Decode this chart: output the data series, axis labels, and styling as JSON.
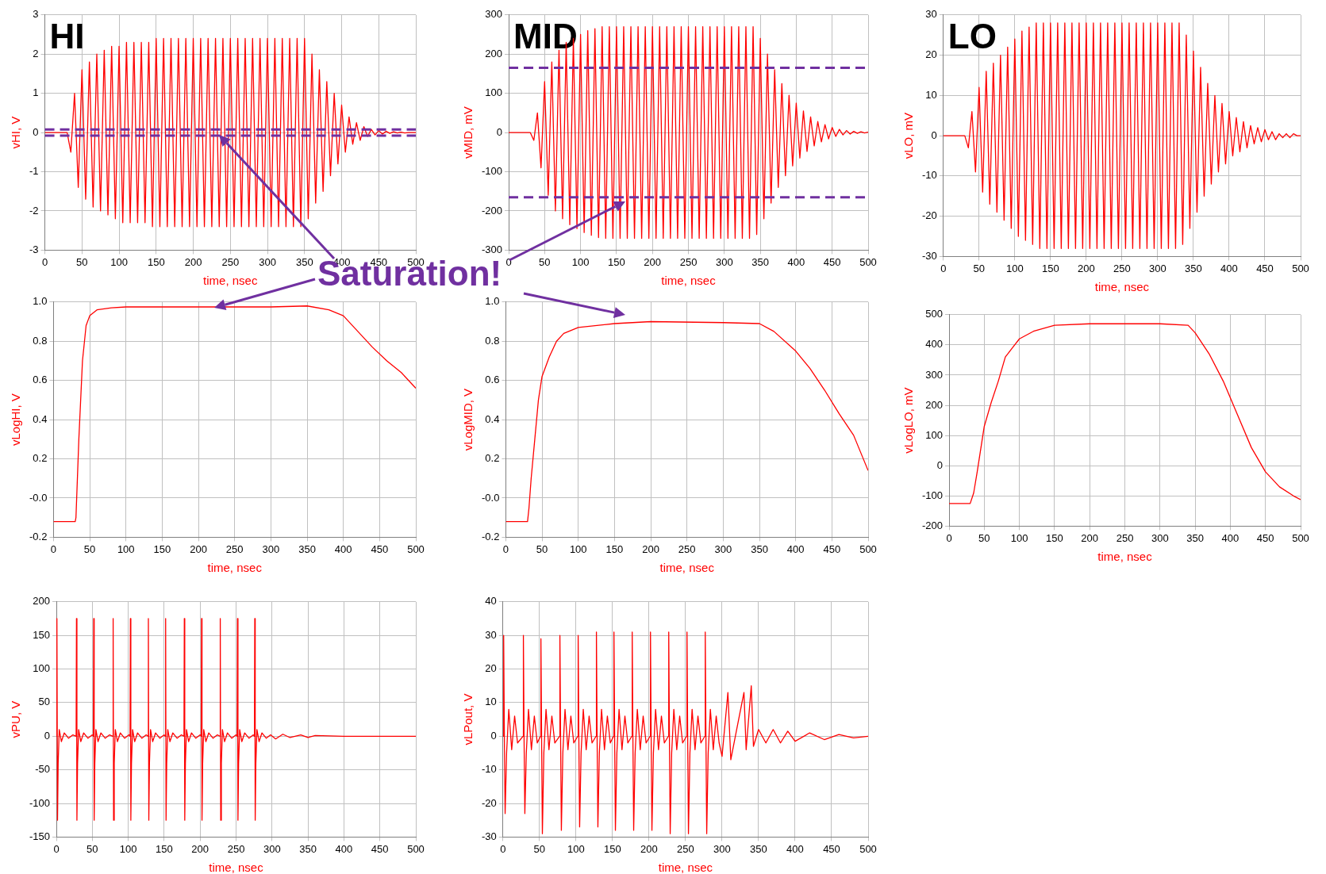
{
  "chart_data": [
    {
      "type": "line",
      "title": "HI",
      "xlabel": "time, nsec",
      "ylabel": "vHI, V",
      "xlim": [
        0,
        500
      ],
      "xticks": [
        0,
        50,
        100,
        150,
        200,
        250,
        300,
        350,
        400,
        450,
        500
      ],
      "ylim": [
        -3,
        3
      ],
      "yticks": [
        -3,
        -2,
        -1,
        0,
        1,
        2,
        3
      ],
      "grid": true,
      "legend": false,
      "marker": "none",
      "annotations": [
        "Saturation!"
      ],
      "ref_lines": [
        {
          "axis": "y",
          "value": 0.08,
          "color": "#7030a0",
          "line_style": "dashed"
        },
        {
          "axis": "y",
          "value": -0.08,
          "color": "#7030a0",
          "line_style": "dashed"
        }
      ],
      "x": [
        0,
        5,
        10,
        15,
        20,
        25,
        30,
        35,
        40,
        45,
        50,
        55,
        60,
        65,
        70,
        75,
        80,
        85,
        90,
        95,
        100,
        105,
        110,
        115,
        120,
        125,
        130,
        135,
        140,
        145,
        150,
        155,
        160,
        165,
        170,
        175,
        180,
        185,
        190,
        195,
        200,
        205,
        210,
        215,
        220,
        225,
        230,
        235,
        240,
        245,
        250,
        255,
        260,
        265,
        270,
        275,
        280,
        285,
        290,
        295,
        300,
        305,
        310,
        315,
        320,
        325,
        330,
        335,
        340,
        345,
        350,
        355,
        360,
        365,
        370,
        375,
        380,
        385,
        390,
        395,
        400,
        405,
        410,
        415,
        420,
        425,
        430,
        435,
        440,
        445,
        450,
        455,
        460,
        465,
        470,
        475,
        480,
        485,
        490,
        495,
        500
      ],
      "series": [
        {
          "color": "#ff0000",
          "values": [
            0,
            0,
            0,
            0,
            0,
            0,
            0,
            -0.5,
            1.0,
            -1.4,
            1.6,
            -1.7,
            1.8,
            -1.9,
            2.0,
            -2.0,
            2.1,
            -2.1,
            2.2,
            -2.2,
            2.2,
            -2.3,
            2.3,
            -2.3,
            2.3,
            -2.3,
            2.3,
            -2.3,
            2.3,
            -2.4,
            2.4,
            -2.4,
            2.4,
            -2.4,
            2.4,
            -2.4,
            2.4,
            -2.4,
            2.4,
            -2.4,
            2.4,
            -2.4,
            2.4,
            -2.4,
            2.4,
            -2.4,
            2.4,
            -2.4,
            2.4,
            -2.4,
            2.4,
            -2.4,
            2.4,
            -2.4,
            2.4,
            -2.4,
            2.4,
            -2.4,
            2.4,
            -2.4,
            2.4,
            -2.4,
            2.4,
            -2.4,
            2.4,
            -2.4,
            2.4,
            -2.4,
            2.4,
            -2.4,
            2.4,
            -2.2,
            2.0,
            -1.8,
            1.6,
            -1.5,
            1.3,
            -1.1,
            1.0,
            -0.8,
            0.7,
            -0.5,
            0.4,
            -0.3,
            0.25,
            -0.2,
            0.15,
            -0.1,
            0.08,
            -0.06,
            0.05,
            -0.04,
            0.03,
            -0.02,
            0.02,
            -0.01,
            0.01,
            -0.01,
            0,
            0,
            0
          ]
        }
      ]
    },
    {
      "type": "line",
      "title": "MID",
      "xlabel": "time, nsec",
      "ylabel": "vMID, mV",
      "xlim": [
        0,
        500
      ],
      "xticks": [
        0,
        50,
        100,
        150,
        200,
        250,
        300,
        350,
        400,
        450,
        500
      ],
      "ylim": [
        -300,
        300
      ],
      "yticks": [
        -300,
        -200,
        -100,
        0,
        100,
        200,
        300
      ],
      "grid": true,
      "legend": false,
      "marker": "none",
      "ref_lines": [
        {
          "axis": "y",
          "value": 165,
          "color": "#7030a0",
          "line_style": "dashed"
        },
        {
          "axis": "y",
          "value": -165,
          "color": "#7030a0",
          "line_style": "dashed"
        }
      ],
      "x": [
        0,
        5,
        10,
        15,
        20,
        25,
        30,
        35,
        40,
        45,
        50,
        55,
        60,
        65,
        70,
        75,
        80,
        85,
        90,
        95,
        100,
        105,
        110,
        115,
        120,
        125,
        130,
        135,
        140,
        145,
        150,
        155,
        160,
        165,
        170,
        175,
        180,
        185,
        190,
        195,
        200,
        205,
        210,
        215,
        220,
        225,
        230,
        235,
        240,
        245,
        250,
        255,
        260,
        265,
        270,
        275,
        280,
        285,
        290,
        295,
        300,
        305,
        310,
        315,
        320,
        325,
        330,
        335,
        340,
        345,
        350,
        355,
        360,
        365,
        370,
        375,
        380,
        385,
        390,
        395,
        400,
        405,
        410,
        415,
        420,
        425,
        430,
        435,
        440,
        445,
        450,
        455,
        460,
        465,
        470,
        475,
        480,
        485,
        490,
        495,
        500
      ],
      "series": [
        {
          "color": "#ff0000",
          "values": [
            0,
            0,
            0,
            0,
            0,
            0,
            0,
            -20,
            50,
            -90,
            130,
            -160,
            180,
            -200,
            210,
            -220,
            230,
            -235,
            240,
            -245,
            250,
            -255,
            260,
            -262,
            265,
            -268,
            270,
            -270,
            270,
            -270,
            270,
            -270,
            270,
            -270,
            270,
            -270,
            270,
            -270,
            270,
            -270,
            270,
            -270,
            270,
            -270,
            270,
            -270,
            270,
            -270,
            270,
            -270,
            270,
            -270,
            270,
            -270,
            270,
            -270,
            270,
            -270,
            270,
            -270,
            270,
            -270,
            270,
            -270,
            270,
            -270,
            270,
            -270,
            270,
            -260,
            240,
            -220,
            200,
            -180,
            160,
            -140,
            125,
            -110,
            95,
            -85,
            75,
            -65,
            55,
            -48,
            40,
            -34,
            28,
            -24,
            20,
            -16,
            13,
            -10,
            8,
            -6,
            5,
            -4,
            3,
            -2,
            2,
            -1,
            1
          ]
        }
      ]
    },
    {
      "type": "line",
      "title": "LO",
      "xlabel": "time, nsec",
      "ylabel": "vLO, mV",
      "xlim": [
        0,
        500
      ],
      "xticks": [
        0,
        50,
        100,
        150,
        200,
        250,
        300,
        350,
        400,
        450,
        500
      ],
      "ylim": [
        -30,
        30
      ],
      "yticks": [
        -30,
        -20,
        -10,
        0,
        10,
        20,
        30
      ],
      "grid": true,
      "legend": false,
      "marker": "none",
      "x": [
        0,
        5,
        10,
        15,
        20,
        25,
        30,
        35,
        40,
        45,
        50,
        55,
        60,
        65,
        70,
        75,
        80,
        85,
        90,
        95,
        100,
        105,
        110,
        115,
        120,
        125,
        130,
        135,
        140,
        145,
        150,
        155,
        160,
        165,
        170,
        175,
        180,
        185,
        190,
        195,
        200,
        205,
        210,
        215,
        220,
        225,
        230,
        235,
        240,
        245,
        250,
        255,
        260,
        265,
        270,
        275,
        280,
        285,
        290,
        295,
        300,
        305,
        310,
        315,
        320,
        325,
        330,
        335,
        340,
        345,
        350,
        355,
        360,
        365,
        370,
        375,
        380,
        385,
        390,
        395,
        400,
        405,
        410,
        415,
        420,
        425,
        430,
        435,
        440,
        445,
        450,
        455,
        460,
        465,
        470,
        475,
        480,
        485,
        490,
        495,
        500
      ],
      "series": [
        {
          "color": "#ff0000",
          "values": [
            0,
            0,
            0,
            0,
            0,
            0,
            0,
            -3,
            6,
            -9,
            12,
            -14,
            16,
            -17,
            18,
            -19,
            20,
            -21,
            22,
            -23,
            24,
            -25,
            26,
            -26,
            27,
            -27,
            28,
            -28,
            28,
            -28,
            28,
            -28,
            28,
            -28,
            28,
            -28,
            28,
            -28,
            28,
            -28,
            28,
            -28,
            28,
            -28,
            28,
            -28,
            28,
            -28,
            28,
            -28,
            28,
            -28,
            28,
            -28,
            28,
            -28,
            28,
            -28,
            28,
            -28,
            28,
            -28,
            28,
            -28,
            28,
            -28,
            28,
            -27,
            25,
            -23,
            21,
            -19,
            17,
            -15,
            13,
            -12,
            10,
            -9,
            8,
            -7,
            6,
            -5,
            4.5,
            -4,
            3.5,
            -3,
            2.5,
            -2,
            2,
            -1.5,
            1.5,
            -1,
            1,
            -1,
            0.5,
            -0.5,
            0.5,
            -0.5,
            0.5,
            0,
            0
          ]
        }
      ]
    },
    {
      "type": "line",
      "xlabel": "time, nsec",
      "ylabel": "vLogHI, V",
      "xlim": [
        0,
        500
      ],
      "xticks": [
        0,
        50,
        100,
        150,
        200,
        250,
        300,
        350,
        400,
        450,
        500
      ],
      "ylim": [
        -0.2,
        1.0
      ],
      "yticks": [
        {
          "value": -0.2,
          "label": "-0.2"
        },
        {
          "value": 0,
          "label": "-0.0"
        },
        {
          "value": 0.2,
          "label": "0.2"
        },
        {
          "value": 0.4,
          "label": "0.4"
        },
        {
          "value": 0.6,
          "label": "0.6"
        },
        {
          "value": 0.8,
          "label": "0.8"
        },
        {
          "value": 1.0,
          "label": "1.0"
        }
      ],
      "grid": true,
      "legend": false,
      "marker": "none",
      "x": [
        0,
        30,
        31,
        35,
        40,
        45,
        50,
        60,
        80,
        100,
        200,
        300,
        350,
        380,
        400,
        420,
        440,
        460,
        480,
        500
      ],
      "series": [
        {
          "color": "#ff0000",
          "values": [
            -0.12,
            -0.12,
            -0.1,
            0.3,
            0.7,
            0.88,
            0.93,
            0.96,
            0.97,
            0.975,
            0.975,
            0.975,
            0.98,
            0.96,
            0.93,
            0.85,
            0.77,
            0.7,
            0.64,
            0.56
          ]
        }
      ]
    },
    {
      "type": "line",
      "xlabel": "time, nsec",
      "ylabel": "vLogMID, V",
      "xlim": [
        0,
        500
      ],
      "xticks": [
        0,
        50,
        100,
        150,
        200,
        250,
        300,
        350,
        400,
        450,
        500
      ],
      "ylim": [
        -0.2,
        1.0
      ],
      "yticks": [
        {
          "value": -0.2,
          "label": "-0.2"
        },
        {
          "value": 0,
          "label": "-0.0"
        },
        {
          "value": 0.2,
          "label": "0.2"
        },
        {
          "value": 0.4,
          "label": "0.4"
        },
        {
          "value": 0.6,
          "label": "0.6"
        },
        {
          "value": 0.8,
          "label": "0.8"
        },
        {
          "value": 1.0,
          "label": "1.0"
        }
      ],
      "grid": true,
      "legend": false,
      "marker": "none",
      "x": [
        0,
        30,
        32,
        35,
        40,
        45,
        50,
        60,
        70,
        80,
        100,
        150,
        200,
        300,
        350,
        370,
        400,
        420,
        440,
        460,
        480,
        500
      ],
      "series": [
        {
          "color": "#ff0000",
          "values": [
            -0.12,
            -0.12,
            -0.05,
            0.1,
            0.3,
            0.5,
            0.62,
            0.72,
            0.8,
            0.84,
            0.87,
            0.89,
            0.9,
            0.895,
            0.89,
            0.85,
            0.75,
            0.66,
            0.55,
            0.43,
            0.32,
            0.14
          ]
        }
      ]
    },
    {
      "type": "line",
      "xlabel": "time, nsec",
      "ylabel": "vLogLO, mV",
      "xlim": [
        0,
        500
      ],
      "xticks": [
        0,
        50,
        100,
        150,
        200,
        250,
        300,
        350,
        400,
        450,
        500
      ],
      "ylim": [
        -200,
        500
      ],
      "yticks": [
        -200,
        -100,
        0,
        100,
        200,
        300,
        400,
        500
      ],
      "grid": true,
      "legend": false,
      "marker": "none",
      "x": [
        0,
        30,
        35,
        40,
        50,
        60,
        70,
        80,
        90,
        100,
        120,
        150,
        200,
        300,
        340,
        350,
        370,
        390,
        410,
        430,
        450,
        470,
        490,
        500
      ],
      "series": [
        {
          "color": "#ff0000",
          "values": [
            -125,
            -125,
            -90,
            -20,
            130,
            210,
            280,
            360,
            390,
            420,
            445,
            465,
            470,
            470,
            465,
            440,
            370,
            280,
            170,
            60,
            -20,
            -70,
            -100,
            -112
          ]
        }
      ]
    },
    {
      "type": "line",
      "xlabel": "time, nsec",
      "ylabel": "vPU, V",
      "xlim": [
        0,
        500
      ],
      "xticks": [
        0,
        50,
        100,
        150,
        200,
        250,
        300,
        350,
        400,
        450,
        500
      ],
      "ylim": [
        -150,
        200
      ],
      "yticks": [
        -150,
        -100,
        -50,
        0,
        50,
        100,
        150,
        200
      ],
      "grid": true,
      "legend": false,
      "marker": "none",
      "x": [
        0,
        0.5,
        1,
        1.6,
        2.5,
        4,
        7,
        11,
        17,
        23,
        27.5,
        28,
        28.6,
        29.5,
        31,
        34,
        38,
        44,
        50,
        51.5,
        52,
        52.6,
        53.5,
        55,
        58,
        62,
        68,
        74,
        78.5,
        79,
        79.6,
        80.5,
        82,
        85,
        89,
        95,
        101,
        102.5,
        103,
        103.6,
        104.5,
        106,
        109,
        113,
        119,
        125,
        127.5,
        128,
        128.6,
        129.5,
        131,
        134,
        138,
        144,
        150,
        151.5,
        152,
        152.6,
        153.5,
        155,
        158,
        162,
        168,
        174,
        177.5,
        178,
        178.6,
        179.5,
        181,
        184,
        188,
        194,
        200,
        201.5,
        202,
        202.6,
        203.5,
        205,
        208,
        212,
        218,
        224,
        227.5,
        228,
        228.6,
        229.5,
        231,
        234,
        238,
        244,
        250,
        251.5,
        252,
        252.6,
        253.5,
        255,
        258,
        262,
        268,
        274,
        275.5,
        276,
        276.6,
        277.5,
        279,
        282,
        286,
        292,
        298,
        305,
        315,
        325,
        340,
        350,
        360,
        400,
        450,
        500
      ],
      "series": [
        {
          "color": "#ff0000",
          "values": [
            0,
            0,
            175,
            -125,
            -40,
            10,
            -8,
            5,
            -3,
            2,
            0,
            175,
            -125,
            -40,
            10,
            -8,
            5,
            -3,
            2,
            0,
            175,
            -125,
            -40,
            10,
            -8,
            5,
            -3,
            2,
            0,
            175,
            -125,
            -40,
            10,
            -8,
            5,
            -3,
            2,
            0,
            175,
            -125,
            -40,
            10,
            -8,
            5,
            -3,
            2,
            0,
            175,
            -125,
            -40,
            10,
            -8,
            5,
            -3,
            2,
            0,
            175,
            -125,
            -40,
            10,
            -8,
            5,
            -3,
            2,
            0,
            175,
            -125,
            -40,
            10,
            -8,
            5,
            -3,
            2,
            0,
            175,
            -125,
            -40,
            10,
            -8,
            5,
            -3,
            2,
            0,
            175,
            -125,
            -40,
            10,
            -8,
            5,
            -3,
            2,
            0,
            175,
            -125,
            -40,
            10,
            -8,
            5,
            -3,
            2,
            0,
            175,
            -125,
            -40,
            10,
            -8,
            5,
            -3,
            2,
            -4,
            3,
            -2,
            2,
            -2,
            1,
            0,
            0,
            0
          ]
        }
      ]
    },
    {
      "type": "line",
      "xlabel": "time, nsec",
      "ylabel": "vLPout, V",
      "xlim": [
        0,
        500
      ],
      "xticks": [
        0,
        50,
        100,
        150,
        200,
        250,
        300,
        350,
        400,
        450,
        500
      ],
      "ylim": [
        -30,
        40
      ],
      "yticks": [
        -30,
        -20,
        -10,
        0,
        10,
        20,
        30,
        40
      ],
      "grid": true,
      "legend": false,
      "marker": "none",
      "x": [
        0,
        0.5,
        1,
        2,
        3,
        5,
        8,
        12,
        16,
        20,
        27.5,
        28,
        29,
        30,
        32,
        35,
        39,
        43,
        47,
        51.5,
        52,
        53,
        54,
        56,
        59,
        63,
        67,
        71,
        77.5,
        78,
        79,
        80,
        82,
        85,
        89,
        93,
        97,
        102.5,
        103,
        104,
        105,
        107,
        110,
        114,
        118,
        122,
        127.5,
        128,
        129,
        130,
        132,
        135,
        139,
        143,
        147,
        151.5,
        152,
        153,
        154,
        156,
        159,
        163,
        167,
        171,
        176.5,
        177,
        178,
        179,
        181,
        184,
        188,
        192,
        196,
        201.5,
        202,
        203,
        204,
        206,
        209,
        213,
        217,
        221,
        226.5,
        227,
        228,
        229,
        231,
        234,
        238,
        242,
        246,
        251.5,
        252,
        253,
        254,
        256,
        259,
        263,
        267,
        271,
        276.5,
        277,
        278,
        279,
        281,
        284,
        288,
        292,
        296,
        300,
        308,
        312,
        320,
        330,
        333,
        340,
        343,
        350,
        360,
        370,
        380,
        390,
        400,
        420,
        440,
        460,
        480,
        500
      ],
      "series": [
        {
          "color": "#ff0000",
          "values": [
            0,
            0,
            30,
            -2,
            -23,
            -5,
            8,
            -4,
            6,
            -2,
            0,
            30,
            -2,
            -23,
            -5,
            8,
            -4,
            6,
            -2,
            0,
            29,
            -2,
            -29,
            -5,
            8,
            -4,
            6,
            -2,
            0,
            30,
            -2,
            -28,
            -5,
            8,
            -4,
            6,
            -2,
            0,
            30,
            -2,
            -27,
            -5,
            8,
            -4,
            6,
            -2,
            0,
            31,
            -2,
            -27,
            -5,
            8,
            -4,
            6,
            -2,
            0,
            31,
            -2,
            -28,
            -5,
            8,
            -4,
            6,
            -2,
            0,
            31,
            -2,
            -28,
            -5,
            8,
            -4,
            6,
            -2,
            0,
            31,
            -2,
            -28,
            -5,
            8,
            -4,
            6,
            -2,
            0,
            31,
            -2,
            -29,
            -5,
            8,
            -4,
            6,
            -2,
            0,
            31,
            -2,
            -29,
            -5,
            8,
            -4,
            6,
            -2,
            0,
            31,
            -2,
            -29,
            -5,
            8,
            -4,
            6,
            -2,
            -6,
            13,
            -7,
            2,
            13,
            -4,
            15,
            -3,
            2,
            -2,
            2,
            -2,
            1.5,
            -1.5,
            1,
            -1,
            0.5,
            -0.5,
            0
          ]
        }
      ]
    }
  ]
}
